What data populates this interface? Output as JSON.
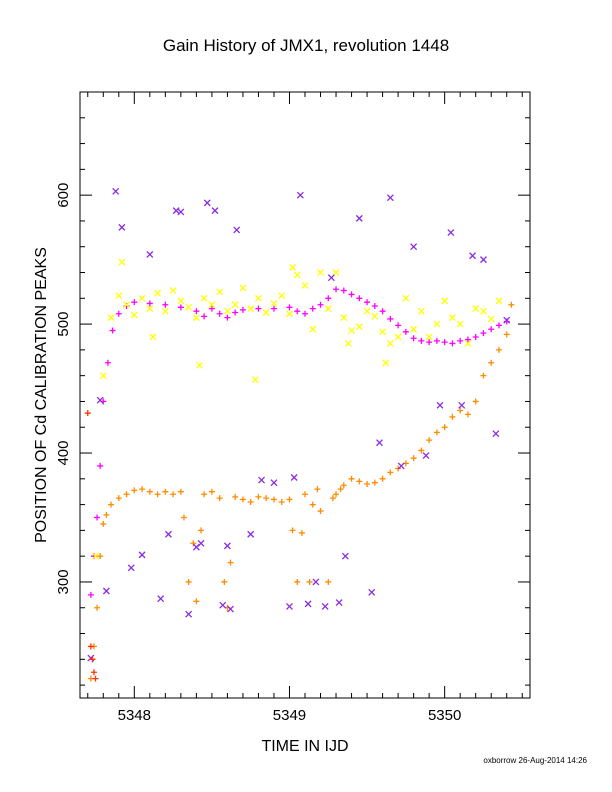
{
  "title": "Gain History of JMX1, revolution 1448",
  "footer": "oxborrow 26-Aug-2014 14:26",
  "chart_data": {
    "type": "scatter",
    "title": "Gain History of JMX1, revolution 1448",
    "xlabel": "TIME IN IJD",
    "ylabel": "POSITION OF Cd CALIBRATION PEAKS",
    "xlim": [
      5347.65,
      5350.55
    ],
    "ylim": [
      210,
      680
    ],
    "xticks": [
      5348,
      5349,
      5350
    ],
    "xtick_labels": [
      "5348",
      "5349",
      "5350"
    ],
    "yticks": [
      300,
      400,
      500,
      600
    ],
    "ytick_labels": [
      "300",
      "400",
      "500",
      "600"
    ],
    "grid": false,
    "legend": "none",
    "series": [
      {
        "color": "#ff00ff",
        "marker": "plus",
        "x": [
          5347.72,
          5347.74,
          5347.76,
          5347.78,
          5347.8,
          5347.83,
          5347.86,
          5347.9,
          5347.95,
          5348.0,
          5348.1,
          5348.2,
          5348.3,
          5348.4,
          5348.45,
          5348.5,
          5348.55,
          5348.6,
          5348.65,
          5348.7,
          5348.8,
          5348.9,
          5349.0,
          5349.05,
          5349.1,
          5349.15,
          5349.2,
          5349.25,
          5349.3,
          5349.35,
          5349.4,
          5349.45,
          5349.5,
          5349.55,
          5349.6,
          5349.65,
          5349.7,
          5349.75,
          5349.8,
          5349.85,
          5349.9,
          5349.95,
          5350.0,
          5350.05,
          5350.1,
          5350.15,
          5350.2,
          5350.25,
          5350.3,
          5350.35,
          5350.4
        ],
        "y": [
          290,
          320,
          350,
          390,
          440,
          470,
          495,
          508,
          514,
          517,
          516,
          515,
          513,
          510,
          506,
          512,
          508,
          505,
          509,
          511,
          512,
          512,
          513,
          510,
          508,
          512,
          515,
          520,
          527,
          526,
          523,
          520,
          517,
          514,
          510,
          504,
          499,
          494,
          489,
          487,
          486,
          487,
          486,
          485,
          487,
          488,
          490,
          493,
          496,
          499,
          502
        ]
      },
      {
        "color": "#ff8c00",
        "marker": "plus",
        "x": [
          5347.72,
          5347.74,
          5347.76,
          5347.78,
          5347.8,
          5347.82,
          5347.85,
          5347.9,
          5347.95,
          5348.0,
          5348.05,
          5348.1,
          5348.15,
          5348.2,
          5348.25,
          5348.3,
          5348.32,
          5348.35,
          5348.38,
          5348.4,
          5348.43,
          5348.45,
          5348.5,
          5348.55,
          5348.58,
          5348.6,
          5348.62,
          5348.65,
          5348.7,
          5348.75,
          5348.8,
          5348.85,
          5348.9,
          5348.95,
          5349.0,
          5349.02,
          5349.05,
          5349.08,
          5349.1,
          5349.13,
          5349.15,
          5349.18,
          5349.2,
          5349.25,
          5349.28,
          5349.3,
          5349.33,
          5349.35,
          5349.4,
          5349.45,
          5349.5,
          5349.55,
          5349.6,
          5349.65,
          5349.7,
          5349.75,
          5349.8,
          5349.85,
          5349.9,
          5349.95,
          5350.0,
          5350.05,
          5350.1,
          5350.15,
          5350.2,
          5350.25,
          5350.3,
          5350.35,
          5350.4,
          5350.43
        ],
        "y": [
          225,
          250,
          280,
          320,
          345,
          352,
          360,
          365,
          368,
          371,
          372,
          370,
          368,
          370,
          368,
          370,
          350,
          300,
          330,
          285,
          340,
          368,
          370,
          365,
          300,
          280,
          315,
          366,
          364,
          362,
          366,
          365,
          364,
          362,
          364,
          340,
          300,
          338,
          368,
          300,
          360,
          372,
          355,
          300,
          365,
          368,
          372,
          375,
          380,
          378,
          376,
          377,
          380,
          385,
          388,
          392,
          396,
          402,
          410,
          416,
          420,
          428,
          433,
          430,
          440,
          460,
          470,
          480,
          492,
          515
        ]
      },
      {
        "color": "#ffff00",
        "marker": "x",
        "x": [
          5347.75,
          5347.8,
          5347.85,
          5347.9,
          5347.95,
          5348.0,
          5348.05,
          5348.1,
          5348.15,
          5348.2,
          5348.25,
          5348.3,
          5348.35,
          5348.4,
          5348.45,
          5348.5,
          5348.55,
          5348.6,
          5348.65,
          5348.7,
          5348.75,
          5348.8,
          5348.85,
          5348.9,
          5348.95,
          5349.0,
          5349.05,
          5349.1,
          5349.15,
          5349.2,
          5349.25,
          5349.3,
          5349.35,
          5349.4,
          5349.45,
          5349.5,
          5349.55,
          5349.6,
          5349.65,
          5349.7,
          5349.75,
          5349.8,
          5349.85,
          5349.9,
          5349.95,
          5350.0,
          5350.05,
          5350.1,
          5350.15,
          5350.2,
          5350.25,
          5350.3,
          5350.35,
          5347.92,
          5348.12,
          5348.42,
          5348.78,
          5349.02,
          5349.38,
          5349.62
        ],
        "y": [
          320,
          460,
          505,
          522,
          515,
          507,
          520,
          512,
          524,
          510,
          526,
          518,
          513,
          505,
          520,
          515,
          525,
          510,
          515,
          528,
          512,
          520,
          509,
          516,
          522,
          508,
          538,
          530,
          496,
          540,
          512,
          540,
          505,
          495,
          498,
          510,
          506,
          494,
          485,
          490,
          520,
          496,
          510,
          490,
          500,
          518,
          505,
          500,
          485,
          512,
          510,
          504,
          518,
          548,
          490,
          468,
          457,
          544,
          485,
          470
        ]
      },
      {
        "color": "#8a2be2",
        "marker": "x",
        "x": [
          5347.72,
          5347.78,
          5347.82,
          5347.88,
          5347.92,
          5347.98,
          5348.05,
          5348.1,
          5348.17,
          5348.22,
          5348.27,
          5348.3,
          5348.35,
          5348.4,
          5348.43,
          5348.47,
          5348.52,
          5348.57,
          5348.6,
          5348.62,
          5348.66,
          5348.75,
          5348.82,
          5348.9,
          5349.0,
          5349.03,
          5349.07,
          5349.12,
          5349.17,
          5349.23,
          5349.27,
          5349.32,
          5349.36,
          5349.45,
          5349.53,
          5349.58,
          5349.65,
          5349.72,
          5349.8,
          5349.88,
          5349.97,
          5350.04,
          5350.11,
          5350.18,
          5350.25,
          5350.33,
          5350.4
        ],
        "y": [
          241,
          441,
          293,
          603,
          575,
          311,
          321,
          554,
          287,
          337,
          588,
          587,
          275,
          327,
          330,
          594,
          588,
          282,
          328,
          279,
          573,
          337,
          379,
          377,
          281,
          381,
          600,
          283,
          300,
          281,
          536,
          284,
          320,
          582,
          292,
          408,
          598,
          390,
          560,
          398,
          437,
          571,
          437,
          553,
          550,
          415,
          503
        ]
      },
      {
        "color": "#ff3300",
        "marker": "plus",
        "x": [
          5347.7,
          5347.72,
          5347.73,
          5347.74,
          5347.75
        ],
        "y": [
          431,
          250,
          240,
          230,
          225
        ]
      }
    ]
  }
}
